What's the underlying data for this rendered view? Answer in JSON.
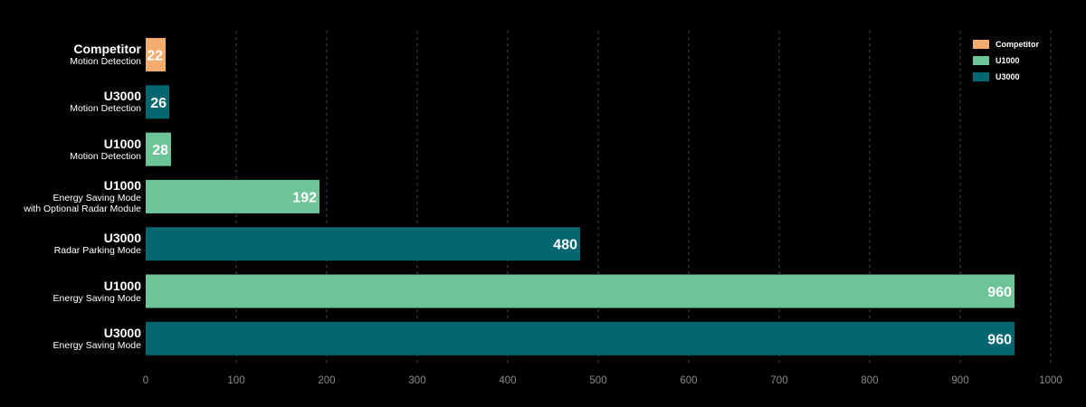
{
  "chart_data": {
    "type": "bar",
    "orientation": "horizontal",
    "xlim": [
      0,
      1000
    ],
    "x_ticks": [
      0,
      100,
      200,
      300,
      400,
      500,
      600,
      700,
      800,
      900,
      1000
    ],
    "grid": true,
    "legend_position": "top-right",
    "categories": [
      {
        "title": "Competitor",
        "subtitle": [
          "Motion Detection"
        ],
        "value": 22,
        "series": "Competitor"
      },
      {
        "title": "U3000",
        "subtitle": [
          "Motion Detection"
        ],
        "value": 26,
        "series": "U3000"
      },
      {
        "title": "U1000",
        "subtitle": [
          "Motion Detection"
        ],
        "value": 28,
        "series": "U1000"
      },
      {
        "title": "U1000",
        "subtitle": [
          "Energy Saving Mode",
          "with Optional Radar Module"
        ],
        "value": 192,
        "series": "U1000"
      },
      {
        "title": "U3000",
        "subtitle": [
          "Radar Parking Mode"
        ],
        "value": 480,
        "series": "U3000"
      },
      {
        "title": "U1000",
        "subtitle": [
          "Energy Saving Mode"
        ],
        "value": 960,
        "series": "U1000"
      },
      {
        "title": "U3000",
        "subtitle": [
          "Energy Saving Mode"
        ],
        "value": 960,
        "series": "U3000"
      }
    ],
    "series": [
      {
        "name": "Competitor",
        "color": "#f5ad6f"
      },
      {
        "name": "U1000",
        "color": "#6cc497"
      },
      {
        "name": "U3000",
        "color": "#036671"
      }
    ]
  }
}
